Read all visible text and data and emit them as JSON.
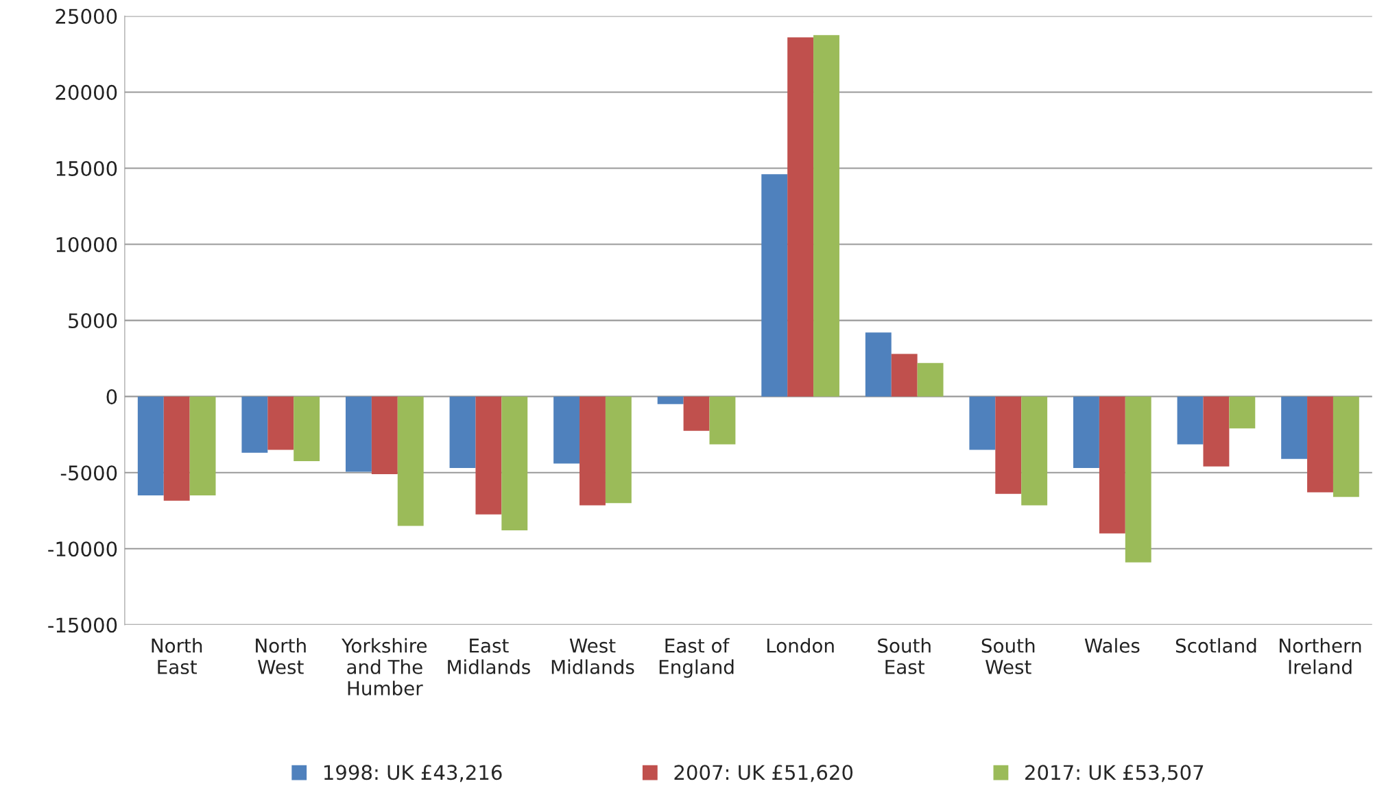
{
  "chart_data": {
    "type": "bar",
    "categories": [
      "North East",
      "North West",
      "Yorkshire and The Humber",
      "East Midlands",
      "West Midlands",
      "East of England",
      "London",
      "South East",
      "South West",
      "Wales",
      "Scotland",
      "Northern Ireland"
    ],
    "series": [
      {
        "name": "1998: UK £43,216",
        "color": "#4f81bd",
        "values": [
          -6500,
          -3700,
          -4950,
          -4700,
          -4400,
          -500,
          14600,
          4200,
          -3500,
          -4700,
          -3150,
          -4100
        ]
      },
      {
        "name": "2007: UK £51,620",
        "color": "#c0504d",
        "values": [
          -6850,
          -3500,
          -5100,
          -7750,
          -7150,
          -2250,
          23600,
          2800,
          -6400,
          -9000,
          -4600,
          -6300
        ]
      },
      {
        "name": "2017: UK £53,507",
        "color": "#9bbb59",
        "values": [
          -6500,
          -4250,
          -8500,
          -8800,
          -7000,
          -3150,
          23750,
          2200,
          -7150,
          -10900,
          -2100,
          -6600
        ]
      }
    ],
    "ylim": [
      -15000,
      25000
    ],
    "yticks": [
      -15000,
      -10000,
      -5000,
      0,
      5000,
      10000,
      15000,
      20000,
      25000
    ],
    "grid": "y",
    "legend": "bottom"
  }
}
